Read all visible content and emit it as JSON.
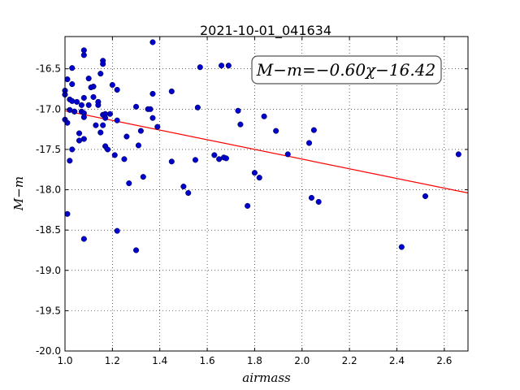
{
  "chart_data": {
    "type": "scatter",
    "title": "2021-10-01_041634",
    "xlabel": "airmass",
    "ylabel": "M−m",
    "xlim": [
      1.0,
      2.7
    ],
    "ylim": [
      -20.0,
      -16.1
    ],
    "x_ticks": [
      "1.0",
      "1.2",
      "1.4",
      "1.6",
      "1.8",
      "2.0",
      "2.2",
      "2.4",
      "2.6"
    ],
    "y_ticks": [
      "-16.5",
      "-17.0",
      "-17.5",
      "-18.0",
      "-18.5",
      "-19.0",
      "-19.5",
      "-20.0"
    ],
    "grid": true,
    "annotation": "M−m=−0.60χ−16.42",
    "fit": {
      "slope": -0.6,
      "intercept": -16.42,
      "x_range": [
        1.0,
        2.7
      ],
      "color": "#ff0000"
    },
    "point_color": "#0000cc",
    "points": [
      [
        1.0,
        -16.77
      ],
      [
        1.0,
        -16.82
      ],
      [
        1.0,
        -17.13
      ],
      [
        1.01,
        -16.63
      ],
      [
        1.01,
        -18.3
      ],
      [
        1.01,
        -17.17
      ],
      [
        1.02,
        -17.01
      ],
      [
        1.02,
        -16.88
      ],
      [
        1.02,
        -17.64
      ],
      [
        1.03,
        -16.9
      ],
      [
        1.03,
        -16.49
      ],
      [
        1.03,
        -16.69
      ],
      [
        1.03,
        -17.5
      ],
      [
        1.04,
        -17.03
      ],
      [
        1.04,
        -17.03
      ],
      [
        1.05,
        -16.91
      ],
      [
        1.06,
        -17.3
      ],
      [
        1.06,
        -17.39
      ],
      [
        1.07,
        -16.95
      ],
      [
        1.07,
        -17.03
      ],
      [
        1.08,
        -16.33
      ],
      [
        1.08,
        -16.27
      ],
      [
        1.08,
        -17.05
      ],
      [
        1.08,
        -17.1
      ],
      [
        1.08,
        -16.86
      ],
      [
        1.08,
        -17.37
      ],
      [
        1.08,
        -18.61
      ],
      [
        1.1,
        -16.62
      ],
      [
        1.1,
        -16.95
      ],
      [
        1.11,
        -16.73
      ],
      [
        1.12,
        -16.72
      ],
      [
        1.12,
        -16.85
      ],
      [
        1.13,
        -17.2
      ],
      [
        1.14,
        -16.91
      ],
      [
        1.14,
        -16.95
      ],
      [
        1.15,
        -16.56
      ],
      [
        1.15,
        -17.29
      ],
      [
        1.16,
        -16.4
      ],
      [
        1.16,
        -16.44
      ],
      [
        1.16,
        -17.07
      ],
      [
        1.16,
        -17.2
      ],
      [
        1.17,
        -17.46
      ],
      [
        1.17,
        -17.06
      ],
      [
        1.17,
        -17.11
      ],
      [
        1.18,
        -17.5
      ],
      [
        1.19,
        -17.06
      ],
      [
        1.2,
        -16.7
      ],
      [
        1.21,
        -17.57
      ],
      [
        1.22,
        -16.76
      ],
      [
        1.22,
        -18.51
      ],
      [
        1.22,
        -17.14
      ],
      [
        1.25,
        -17.62
      ],
      [
        1.26,
        -17.34
      ],
      [
        1.27,
        -17.92
      ],
      [
        1.3,
        -18.75
      ],
      [
        1.3,
        -16.97
      ],
      [
        1.31,
        -17.45
      ],
      [
        1.32,
        -17.27
      ],
      [
        1.33,
        -17.84
      ],
      [
        1.35,
        -17.0
      ],
      [
        1.36,
        -17.0
      ],
      [
        1.37,
        -16.81
      ],
      [
        1.37,
        -17.11
      ],
      [
        1.37,
        -16.17
      ],
      [
        1.39,
        -17.22
      ],
      [
        1.45,
        -16.78
      ],
      [
        1.45,
        -17.65
      ],
      [
        1.5,
        -17.96
      ],
      [
        1.52,
        -18.04
      ],
      [
        1.55,
        -17.63
      ],
      [
        1.56,
        -16.98
      ],
      [
        1.57,
        -16.48
      ],
      [
        1.63,
        -17.57
      ],
      [
        1.65,
        -17.62
      ],
      [
        1.66,
        -16.46
      ],
      [
        1.67,
        -17.6
      ],
      [
        1.68,
        -17.61
      ],
      [
        1.69,
        -16.46
      ],
      [
        1.73,
        -17.02
      ],
      [
        1.74,
        -17.19
      ],
      [
        1.77,
        -18.2
      ],
      [
        1.8,
        -17.79
      ],
      [
        1.82,
        -17.85
      ],
      [
        1.84,
        -17.09
      ],
      [
        1.89,
        -17.27
      ],
      [
        1.94,
        -17.56
      ],
      [
        2.03,
        -17.42
      ],
      [
        2.04,
        -18.1
      ],
      [
        2.05,
        -17.26
      ],
      [
        2.07,
        -18.15
      ],
      [
        2.42,
        -18.71
      ],
      [
        2.52,
        -18.08
      ],
      [
        2.66,
        -17.56
      ]
    ]
  }
}
